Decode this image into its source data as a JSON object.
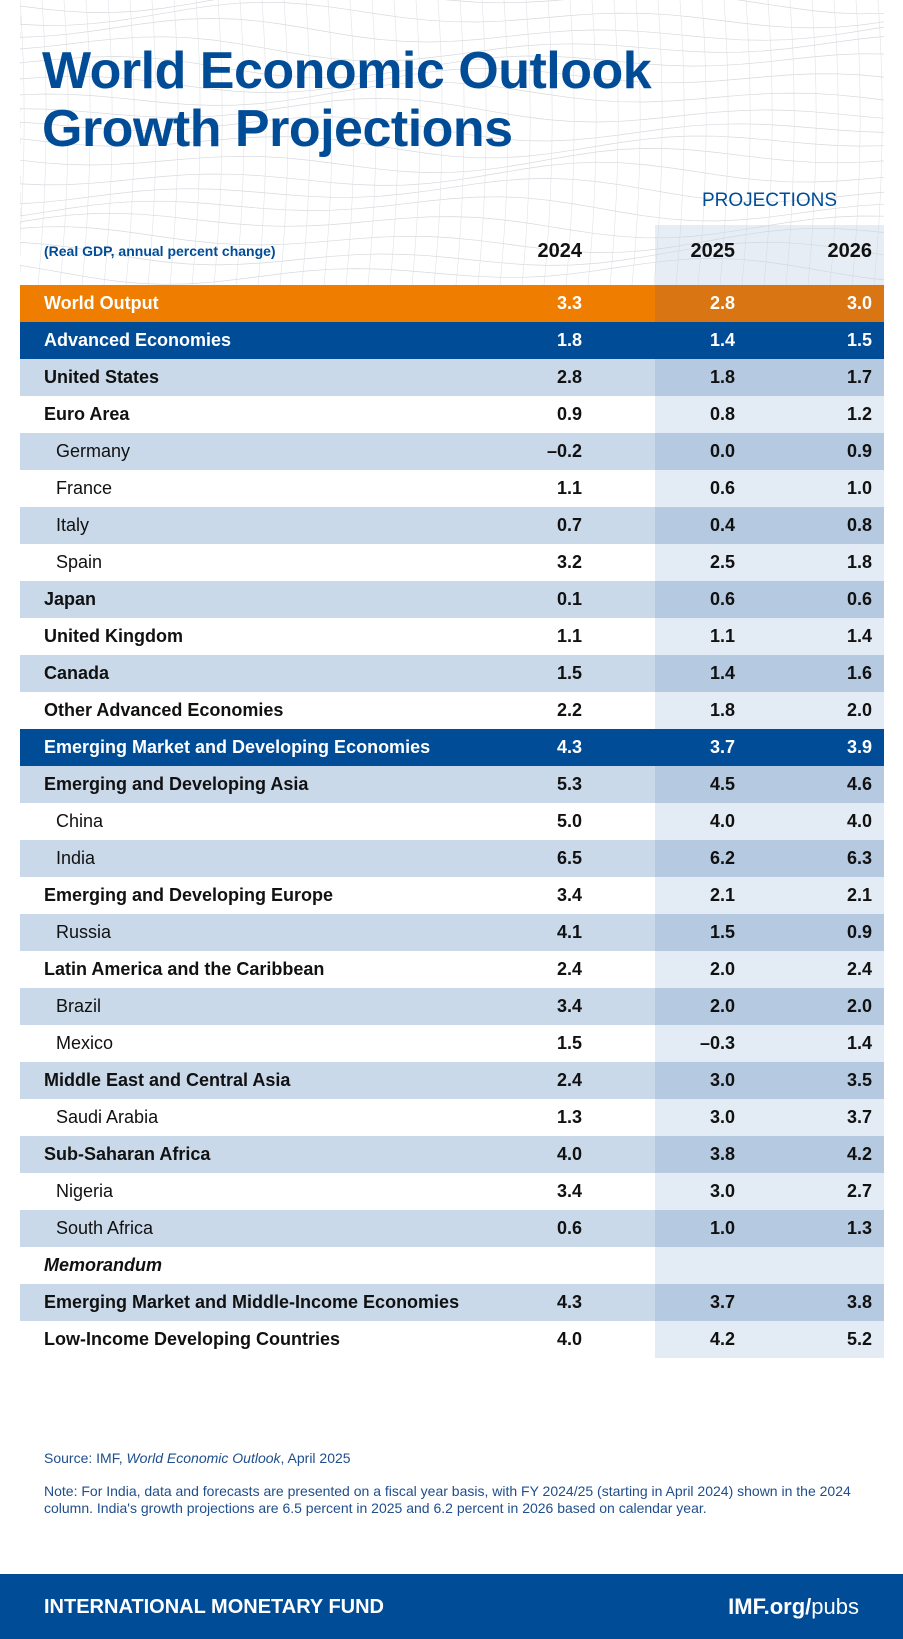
{
  "title_lines": [
    "World Economic Outlook",
    "Growth Projections"
  ],
  "projections_label": "PROJECTIONS",
  "unit_label": "(Real GDP, annual percent change)",
  "years": [
    "2024",
    "2025",
    "2026"
  ],
  "colors": {
    "brand_blue": "#004c97",
    "orange": "#ef7d00",
    "row_shade": "#c9d9ea"
  },
  "rows": [
    {
      "label": "World Output",
      "type": "world",
      "values": [
        "3.3",
        "2.8",
        "3.0"
      ]
    },
    {
      "label": "Advanced Economies",
      "type": "group",
      "values": [
        "1.8",
        "1.4",
        "1.5"
      ]
    },
    {
      "label": "United States",
      "type": "main",
      "values": [
        "2.8",
        "1.8",
        "1.7"
      ]
    },
    {
      "label": "Euro Area",
      "type": "main",
      "values": [
        "0.9",
        "0.8",
        "1.2"
      ]
    },
    {
      "label": "Germany",
      "type": "sub",
      "values": [
        "–0.2",
        "0.0",
        "0.9"
      ]
    },
    {
      "label": "France",
      "type": "sub",
      "values": [
        "1.1",
        "0.6",
        "1.0"
      ]
    },
    {
      "label": "Italy",
      "type": "sub",
      "values": [
        "0.7",
        "0.4",
        "0.8"
      ]
    },
    {
      "label": "Spain",
      "type": "sub",
      "values": [
        "3.2",
        "2.5",
        "1.8"
      ]
    },
    {
      "label": "Japan",
      "type": "main",
      "values": [
        "0.1",
        "0.6",
        "0.6"
      ]
    },
    {
      "label": "United Kingdom",
      "type": "main",
      "values": [
        "1.1",
        "1.1",
        "1.4"
      ]
    },
    {
      "label": "Canada",
      "type": "main",
      "values": [
        "1.5",
        "1.4",
        "1.6"
      ]
    },
    {
      "label": "Other Advanced Economies",
      "type": "main",
      "values": [
        "2.2",
        "1.8",
        "2.0"
      ]
    },
    {
      "label": "Emerging Market and Developing Economies",
      "type": "group",
      "values": [
        "4.3",
        "3.7",
        "3.9"
      ]
    },
    {
      "label": "Emerging and Developing Asia",
      "type": "main",
      "values": [
        "5.3",
        "4.5",
        "4.6"
      ]
    },
    {
      "label": "China",
      "type": "sub",
      "values": [
        "5.0",
        "4.0",
        "4.0"
      ]
    },
    {
      "label": "India",
      "type": "sub",
      "values": [
        "6.5",
        "6.2",
        "6.3"
      ]
    },
    {
      "label": "Emerging and Developing Europe",
      "type": "main",
      "values": [
        "3.4",
        "2.1",
        "2.1"
      ]
    },
    {
      "label": "Russia",
      "type": "sub",
      "values": [
        "4.1",
        "1.5",
        "0.9"
      ]
    },
    {
      "label": "Latin America and the Caribbean",
      "type": "main",
      "values": [
        "2.4",
        "2.0",
        "2.4"
      ]
    },
    {
      "label": "Brazil",
      "type": "sub",
      "values": [
        "3.4",
        "2.0",
        "2.0"
      ]
    },
    {
      "label": "Mexico",
      "type": "sub",
      "values": [
        "1.5",
        "–0.3",
        "1.4"
      ]
    },
    {
      "label": "Middle East and Central Asia",
      "type": "main",
      "values": [
        "2.4",
        "3.0",
        "3.5"
      ]
    },
    {
      "label": "Saudi Arabia",
      "type": "sub",
      "values": [
        "1.3",
        "3.0",
        "3.7"
      ]
    },
    {
      "label": "Sub-Saharan Africa",
      "type": "main",
      "values": [
        "4.0",
        "3.8",
        "4.2"
      ]
    },
    {
      "label": "Nigeria",
      "type": "sub",
      "values": [
        "3.4",
        "3.0",
        "2.7"
      ]
    },
    {
      "label": "South Africa",
      "type": "sub",
      "values": [
        "0.6",
        "1.0",
        "1.3"
      ]
    },
    {
      "label": "Memorandum",
      "type": "memo",
      "values": [
        "",
        "",
        ""
      ]
    },
    {
      "label": "Emerging Market and Middle-Income Economies",
      "type": "main",
      "values": [
        "4.3",
        "3.7",
        "3.8"
      ]
    },
    {
      "label": "Low-Income Developing Countries",
      "type": "main",
      "values": [
        "4.0",
        "4.2",
        "5.2"
      ]
    }
  ],
  "source": {
    "prefix": "Source: IMF, ",
    "title": "World Economic Outlook",
    "suffix": ", April 2025"
  },
  "note": "Note: For India, data and forecasts are presented on a fiscal year basis, with FY 2024/25 (starting in April 2024) shown in the 2024 column. India's growth projections are 6.5 percent in 2025 and 6.2 percent in 2026 based on calendar year.",
  "footer": {
    "org": "INTERNATIONAL MONETARY FUND",
    "url_bold": "IMF.org/",
    "url_light": "pubs"
  }
}
